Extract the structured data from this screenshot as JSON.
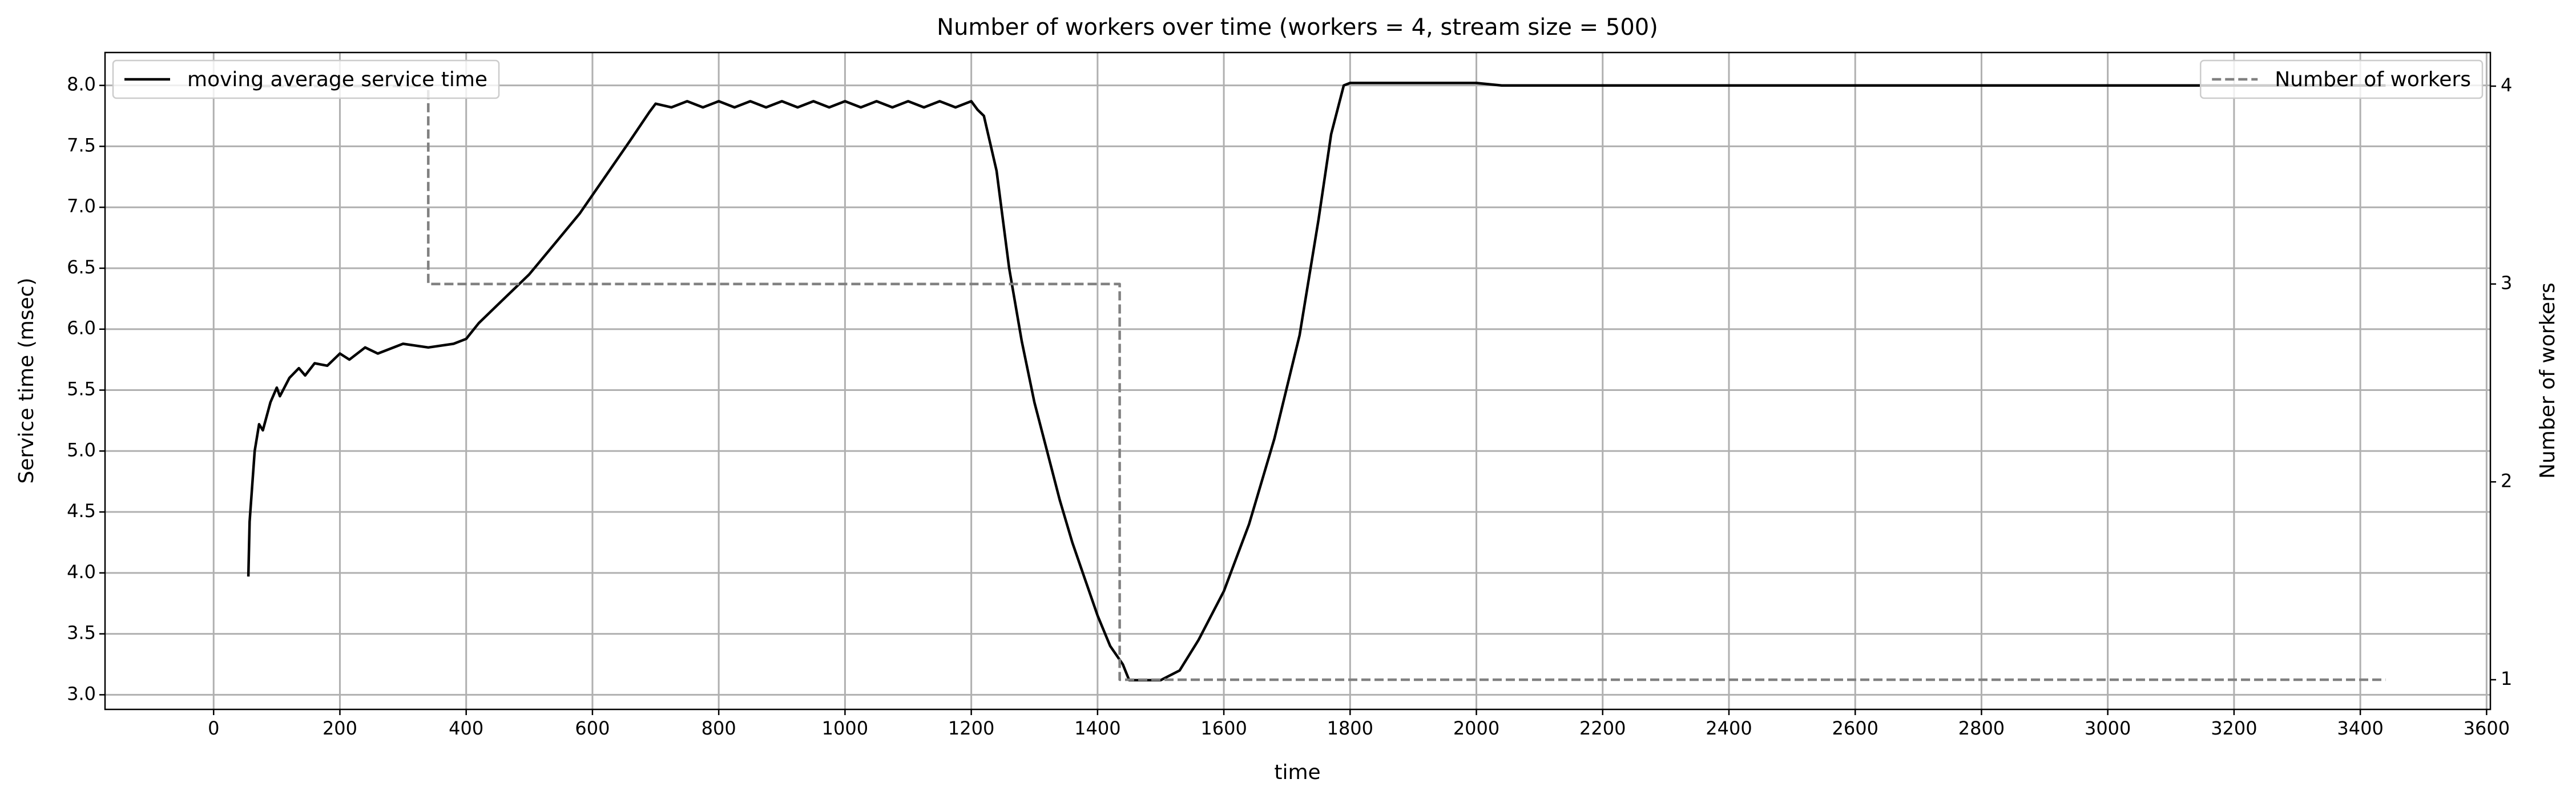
{
  "chart_data": {
    "type": "line",
    "title": "Number of workers over time (workers = 4, stream size = 500)",
    "xlabel": "time",
    "ylabel": "Service time (msec)",
    "y2label": "Number of workers",
    "xlim": [
      -172,
      3606
    ],
    "ylim": [
      2.88,
      8.27
    ],
    "y2lim": [
      0.85,
      4.17
    ],
    "xticks": [
      0,
      200,
      400,
      600,
      800,
      1000,
      1200,
      1400,
      1600,
      1800,
      2000,
      2200,
      2400,
      2600,
      2800,
      3000,
      3200,
      3400,
      3600
    ],
    "yticks": [
      {
        "value": 3,
        "label": "3.0"
      },
      3.5,
      {
        "value": 4,
        "label": "4.0"
      },
      4.5,
      {
        "value": 5,
        "label": "5.0"
      },
      5.5,
      {
        "value": 6,
        "label": "6.0"
      },
      6.5,
      {
        "value": 7,
        "label": "7.0"
      },
      7.5,
      {
        "value": 8,
        "label": "8.0"
      }
    ],
    "y2ticks": [
      1,
      2,
      3,
      4
    ],
    "grid": true,
    "series": [
      {
        "name": "moving average service time",
        "color": "#000000",
        "dash": "solid",
        "legend": "upper left",
        "x": [
          55,
          57,
          65,
          72,
          78,
          90,
          100,
          105,
          120,
          135,
          145,
          160,
          180,
          200,
          215,
          240,
          260,
          300,
          340,
          380,
          400,
          420,
          450,
          480,
          500,
          540,
          580,
          620,
          660,
          690,
          700,
          725,
          750,
          775,
          800,
          825,
          850,
          875,
          900,
          925,
          950,
          975,
          1000,
          1025,
          1050,
          1075,
          1100,
          1125,
          1150,
          1175,
          1200,
          1210,
          1220,
          1240,
          1260,
          1280,
          1300,
          1320,
          1340,
          1360,
          1380,
          1400,
          1420,
          1440,
          1450,
          1500,
          1530,
          1560,
          1600,
          1640,
          1680,
          1720,
          1750,
          1770,
          1790,
          1800,
          1960,
          2000,
          2040,
          3440
        ],
        "values": [
          3.97,
          4.42,
          5.0,
          5.22,
          5.17,
          5.4,
          5.52,
          5.45,
          5.6,
          5.68,
          5.62,
          5.72,
          5.7,
          5.8,
          5.75,
          5.85,
          5.8,
          5.88,
          5.85,
          5.88,
          5.92,
          6.05,
          6.2,
          6.35,
          6.45,
          6.7,
          6.95,
          7.25,
          7.55,
          7.78,
          7.85,
          7.82,
          7.87,
          7.82,
          7.87,
          7.82,
          7.87,
          7.82,
          7.87,
          7.82,
          7.87,
          7.82,
          7.87,
          7.82,
          7.87,
          7.82,
          7.87,
          7.82,
          7.87,
          7.82,
          7.87,
          7.8,
          7.75,
          7.3,
          6.5,
          5.9,
          5.4,
          5.0,
          4.6,
          4.25,
          3.95,
          3.65,
          3.4,
          3.25,
          3.12,
          3.12,
          3.2,
          3.45,
          3.85,
          4.4,
          5.1,
          5.95,
          6.9,
          7.6,
          8.0,
          8.02,
          8.02,
          8.02,
          8.0,
          8.0
        ]
      },
      {
        "name": "Number of workers",
        "color": "#808080",
        "dash": "dashed",
        "axis": "y2",
        "drawstyle": "steps-post",
        "legend": "upper right",
        "x": [
          55,
          340,
          1435,
          3440
        ],
        "values": [
          4,
          3,
          1,
          1
        ]
      }
    ]
  }
}
